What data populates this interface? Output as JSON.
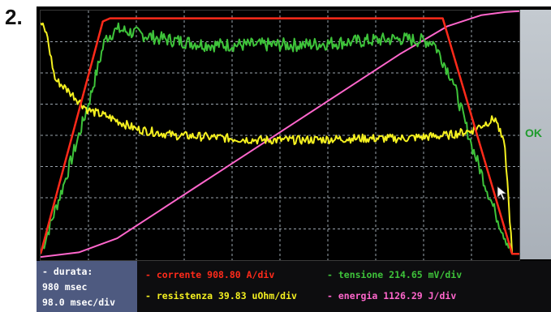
{
  "figure_label": "2.",
  "status": "OK",
  "readouts": {
    "durata_label": "- durata:",
    "durata_value": "980 msec",
    "durata_scale": "98.0 msec/div",
    "corrente": "- corrente 908.80 A/div",
    "resistenza": "- resistenza 39.83 uOhm/div",
    "tensione": "- tensione 214.65 mV/div",
    "energia": "- energia 1126.29 J/div"
  },
  "colors": {
    "corrente": "#ff2a1a",
    "resistenza": "#f4f020",
    "tensione": "#3ec33a",
    "energia": "#ff66cc",
    "grid": "#9aa3ad",
    "ok": "#1f9b2c"
  },
  "chart_data": {
    "type": "line",
    "title": "",
    "xlabel": "",
    "ylabel": "",
    "grid": true,
    "xlim": [
      0,
      10
    ],
    "ylim": [
      0,
      8
    ],
    "series": [
      {
        "name": "corrente",
        "x": [
          0,
          1.3,
          1.45,
          8.4,
          9.85,
          10
        ],
        "values": [
          0.2,
          7.65,
          7.75,
          7.75,
          0.2,
          0.2
        ]
      },
      {
        "name": "tensione",
        "x": [
          0,
          0.5,
          1.0,
          1.35,
          1.6,
          2.5,
          3.5,
          4.5,
          5.5,
          6.5,
          7.5,
          8.2,
          8.6,
          9.0,
          9.5,
          9.85
        ],
        "values": [
          0.2,
          2.5,
          5.0,
          7.1,
          7.4,
          7.1,
          6.9,
          6.9,
          6.9,
          7.0,
          7.1,
          7.0,
          5.8,
          3.7,
          1.5,
          0.2
        ]
      },
      {
        "name": "resistenza",
        "x": [
          0,
          0.12,
          0.3,
          0.6,
          1.0,
          1.4,
          2.0,
          2.8,
          3.5,
          4.5,
          5.5,
          6.5,
          7.5,
          8.5,
          9.0,
          9.5,
          9.7,
          9.85
        ],
        "values": [
          7.6,
          7.3,
          5.8,
          5.4,
          4.8,
          4.6,
          4.2,
          4.0,
          3.95,
          3.85,
          3.85,
          3.9,
          3.9,
          4.0,
          4.15,
          4.55,
          3.6,
          0.2
        ]
      },
      {
        "name": "energia",
        "x": [
          0,
          0.8,
          1.6,
          2.5,
          3.5,
          4.5,
          5.5,
          6.5,
          7.5,
          8.5,
          9.2,
          9.7,
          10
        ],
        "values": [
          0.1,
          0.25,
          0.7,
          1.6,
          2.6,
          3.6,
          4.6,
          5.6,
          6.6,
          7.5,
          7.85,
          7.95,
          7.98
        ]
      }
    ]
  }
}
